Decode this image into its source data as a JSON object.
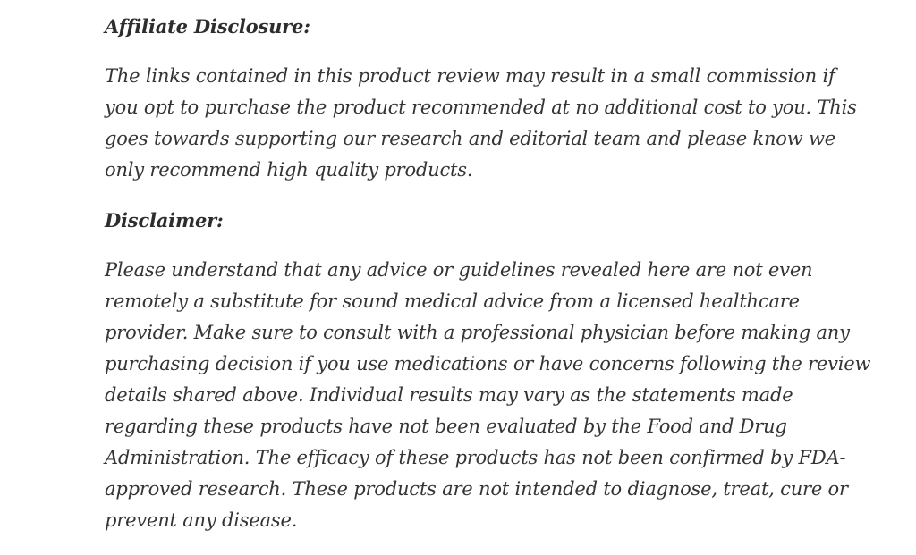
{
  "article": {
    "affiliate_disclosure": {
      "heading": "Affiliate Disclosure:",
      "body": "The links contained in this product review may result in a small commission if\nyou opt to purchase the product recommended at no additional cost to you. This\ngoes towards supporting our research and editorial team and please know we\nonly recommend high quality products."
    },
    "disclaimer": {
      "heading": "Disclaimer:",
      "body": "Please understand that any advice or guidelines revealed here are not even\nremotely a substitute for sound medical advice from a licensed healthcare\nprovider. Make sure to consult with a professional physician before making any\npurchasing decision if you use medications or have concerns following the review\ndetails shared above. Individual results may vary as the statements made\nregarding these products have not been evaluated by the Food and Drug\nAdministration. The efficacy of these products has not been confirmed by FDA-\napproved research. These products are not intended to diagnose, treat, cure or\nprevent any disease."
    },
    "colors": {
      "background": "#ffffff",
      "heading_text": "#2d2d2d",
      "body_text": "#343434"
    }
  }
}
